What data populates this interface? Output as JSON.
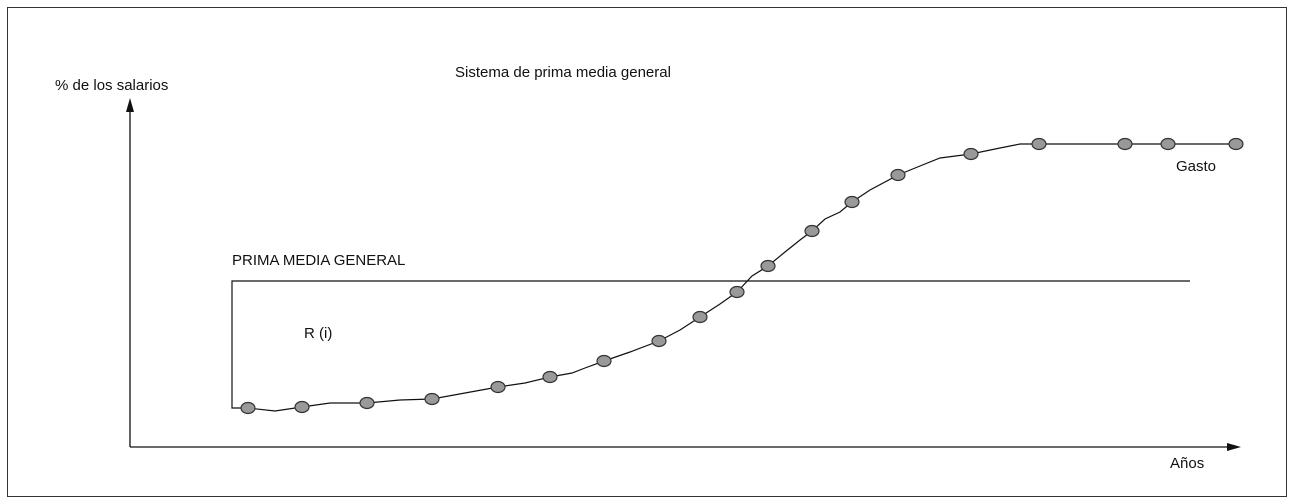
{
  "title": "Sistema de prima media general",
  "y_axis_label": "% de los salarios",
  "x_axis_label": "Años",
  "level_label": "PRIMA MEDIA GENERAL",
  "region_label": "R (i)",
  "curve_label": "Gasto",
  "colors": {
    "line": "#111111",
    "marker_fill": "#999999",
    "marker_stroke": "#333333"
  }
}
